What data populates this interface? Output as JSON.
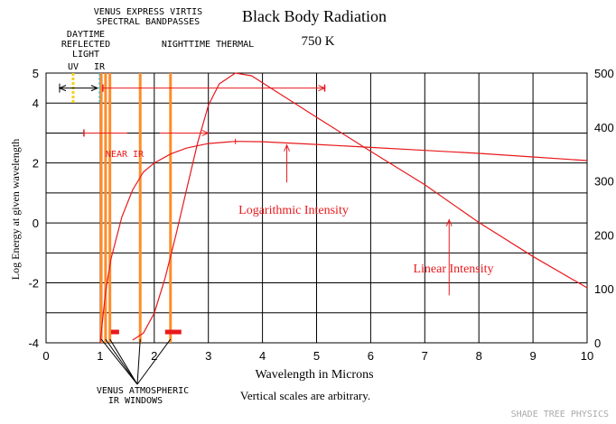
{
  "chart_data": {
    "type": "line",
    "title": "Black Body Radiation",
    "subtitle": "750 K",
    "xlabel": "Wavelength in Microns",
    "ylabel_left": "Log Energy at given wavelength",
    "note": "Vertical scales are arbitrary.",
    "credit": "SHADE TREE PHYSICS",
    "x_range": [
      0,
      10
    ],
    "x_ticks": [
      "0",
      "1",
      "2",
      "3",
      "4",
      "5",
      "6",
      "7",
      "8",
      "9",
      "10"
    ],
    "y_left_range": [
      -4,
      5
    ],
    "y_left_ticks": [
      "-4",
      "-2",
      "0",
      "2",
      "4",
      "5"
    ],
    "y_left_tick_values": [
      -4,
      -2,
      0,
      2,
      4,
      5
    ],
    "y_right_range": [
      0,
      500
    ],
    "y_right_ticks": [
      "0",
      "100",
      "200",
      "300",
      "400",
      "500"
    ],
    "y_right_tick_values": [
      0,
      100,
      200,
      300,
      400,
      500
    ],
    "grid": true,
    "series": [
      {
        "name": "Logarithmic Intensity",
        "axis": "left",
        "x": [
          1.0,
          1.1,
          1.2,
          1.4,
          1.6,
          1.8,
          2.0,
          2.3,
          2.6,
          3.0,
          3.5,
          4.0,
          5.0,
          6.0,
          7.0,
          8.0,
          9.0,
          10.0
        ],
        "y": [
          -4.0,
          -2.3,
          -1.2,
          0.2,
          1.1,
          1.7,
          2.0,
          2.3,
          2.5,
          2.65,
          2.72,
          2.71,
          2.62,
          2.52,
          2.42,
          2.32,
          2.2,
          2.08
        ]
      },
      {
        "name": "Linear Intensity",
        "axis": "right",
        "x": [
          1.6,
          1.8,
          2.0,
          2.2,
          2.4,
          2.6,
          2.8,
          3.0,
          3.2,
          3.5,
          3.8,
          4.0,
          4.5,
          5.0,
          6.0,
          7.0,
          8.0,
          9.0,
          10.0
        ],
        "y": [
          5,
          18,
          55,
          120,
          200,
          285,
          370,
          440,
          480,
          500,
          495,
          482,
          450,
          418,
          355,
          293,
          223,
          160,
          102
        ]
      }
    ],
    "annotations": {
      "top_label": [
        "VENUS EXPRESS VIRTIS",
        "SPECTRAL BANDPASSES"
      ],
      "daytime_label": [
        "DAYTIME",
        "REFLECTED",
        "LIGHT"
      ],
      "nighttime_label": "NIGHTTIME THERMAL",
      "uv_label": "UV",
      "ir_label": "IR",
      "near_ir_label": "NEAR IR",
      "windows_label": [
        "VENUS ATMOSPHERIC",
        "IR WINDOWS"
      ],
      "log_label": "Logarithmic Intensity",
      "lin_label": "Linear Intensity",
      "uv_range": [
        0.25,
        0.95
      ],
      "ir_range": [
        1.05,
        5.15
      ],
      "near_ir_range": [
        0.7,
        3.0
      ],
      "uv_line_x": 0.5,
      "cyan_line_x": 1.0,
      "window_lines_x": [
        1.02,
        1.1,
        1.18,
        1.74,
        2.3
      ],
      "window_marks": [
        [
          1.2,
          1.35
        ],
        [
          2.2,
          2.5
        ]
      ],
      "log_arrow": {
        "x": 4.45,
        "from_y": 1.35,
        "to_y": 2.6
      },
      "lin_arrow": {
        "x": 7.45,
        "from_y": 88,
        "to_y": 228
      }
    },
    "colors": {
      "curve": "#e8191c",
      "grid": "#000000",
      "window_line": "#ff8c2a",
      "uv_line": "#f2d21a",
      "cyan_line": "#27c3e6",
      "text": "#000000"
    }
  }
}
